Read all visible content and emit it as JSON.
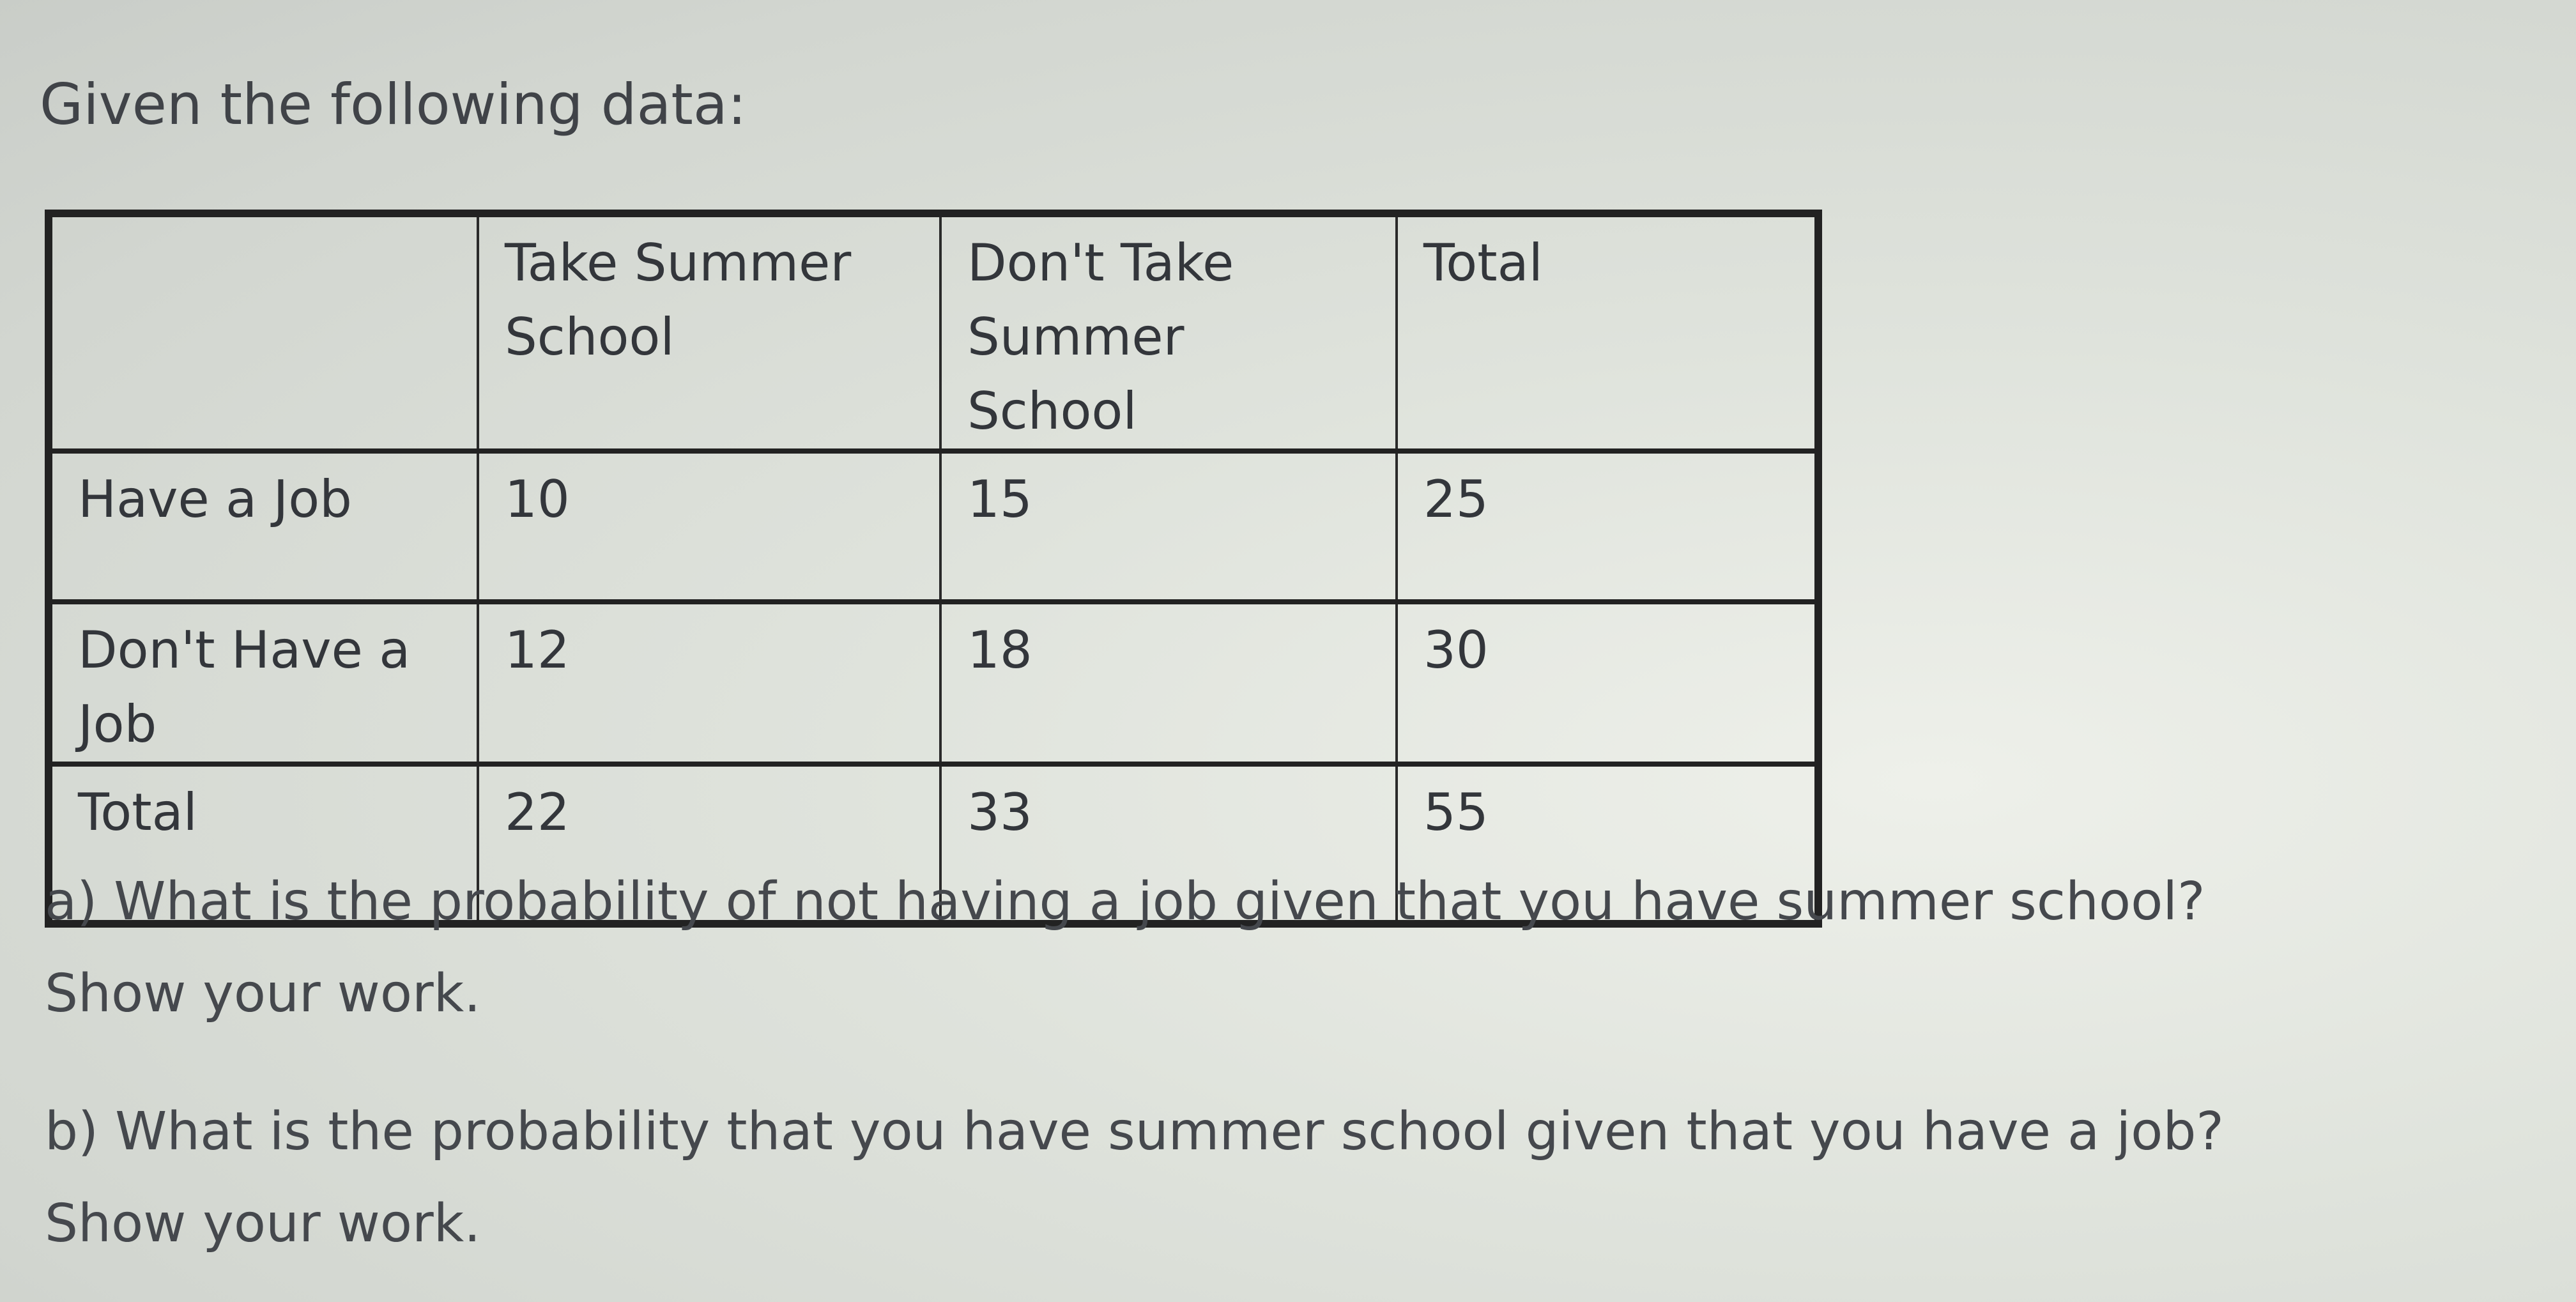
{
  "title": "Given the following data:",
  "table": {
    "headers": [
      "",
      "Take Summer School",
      "Don't Take Summer School",
      "Total"
    ],
    "rows": [
      [
        "Have a Job",
        "10",
        "15",
        "25"
      ],
      [
        "Don't Have a Job",
        "12",
        "18",
        "30"
      ],
      [
        "Total",
        "22",
        "33",
        "55"
      ]
    ]
  },
  "questions": [
    {
      "line1": "a) What is the probability of not having a job given that you have summer school?",
      "line2": "Show your work."
    },
    {
      "line1": "b) What is the probability that you have summer school given that you have a job?",
      "line2": "Show your work."
    }
  ]
}
